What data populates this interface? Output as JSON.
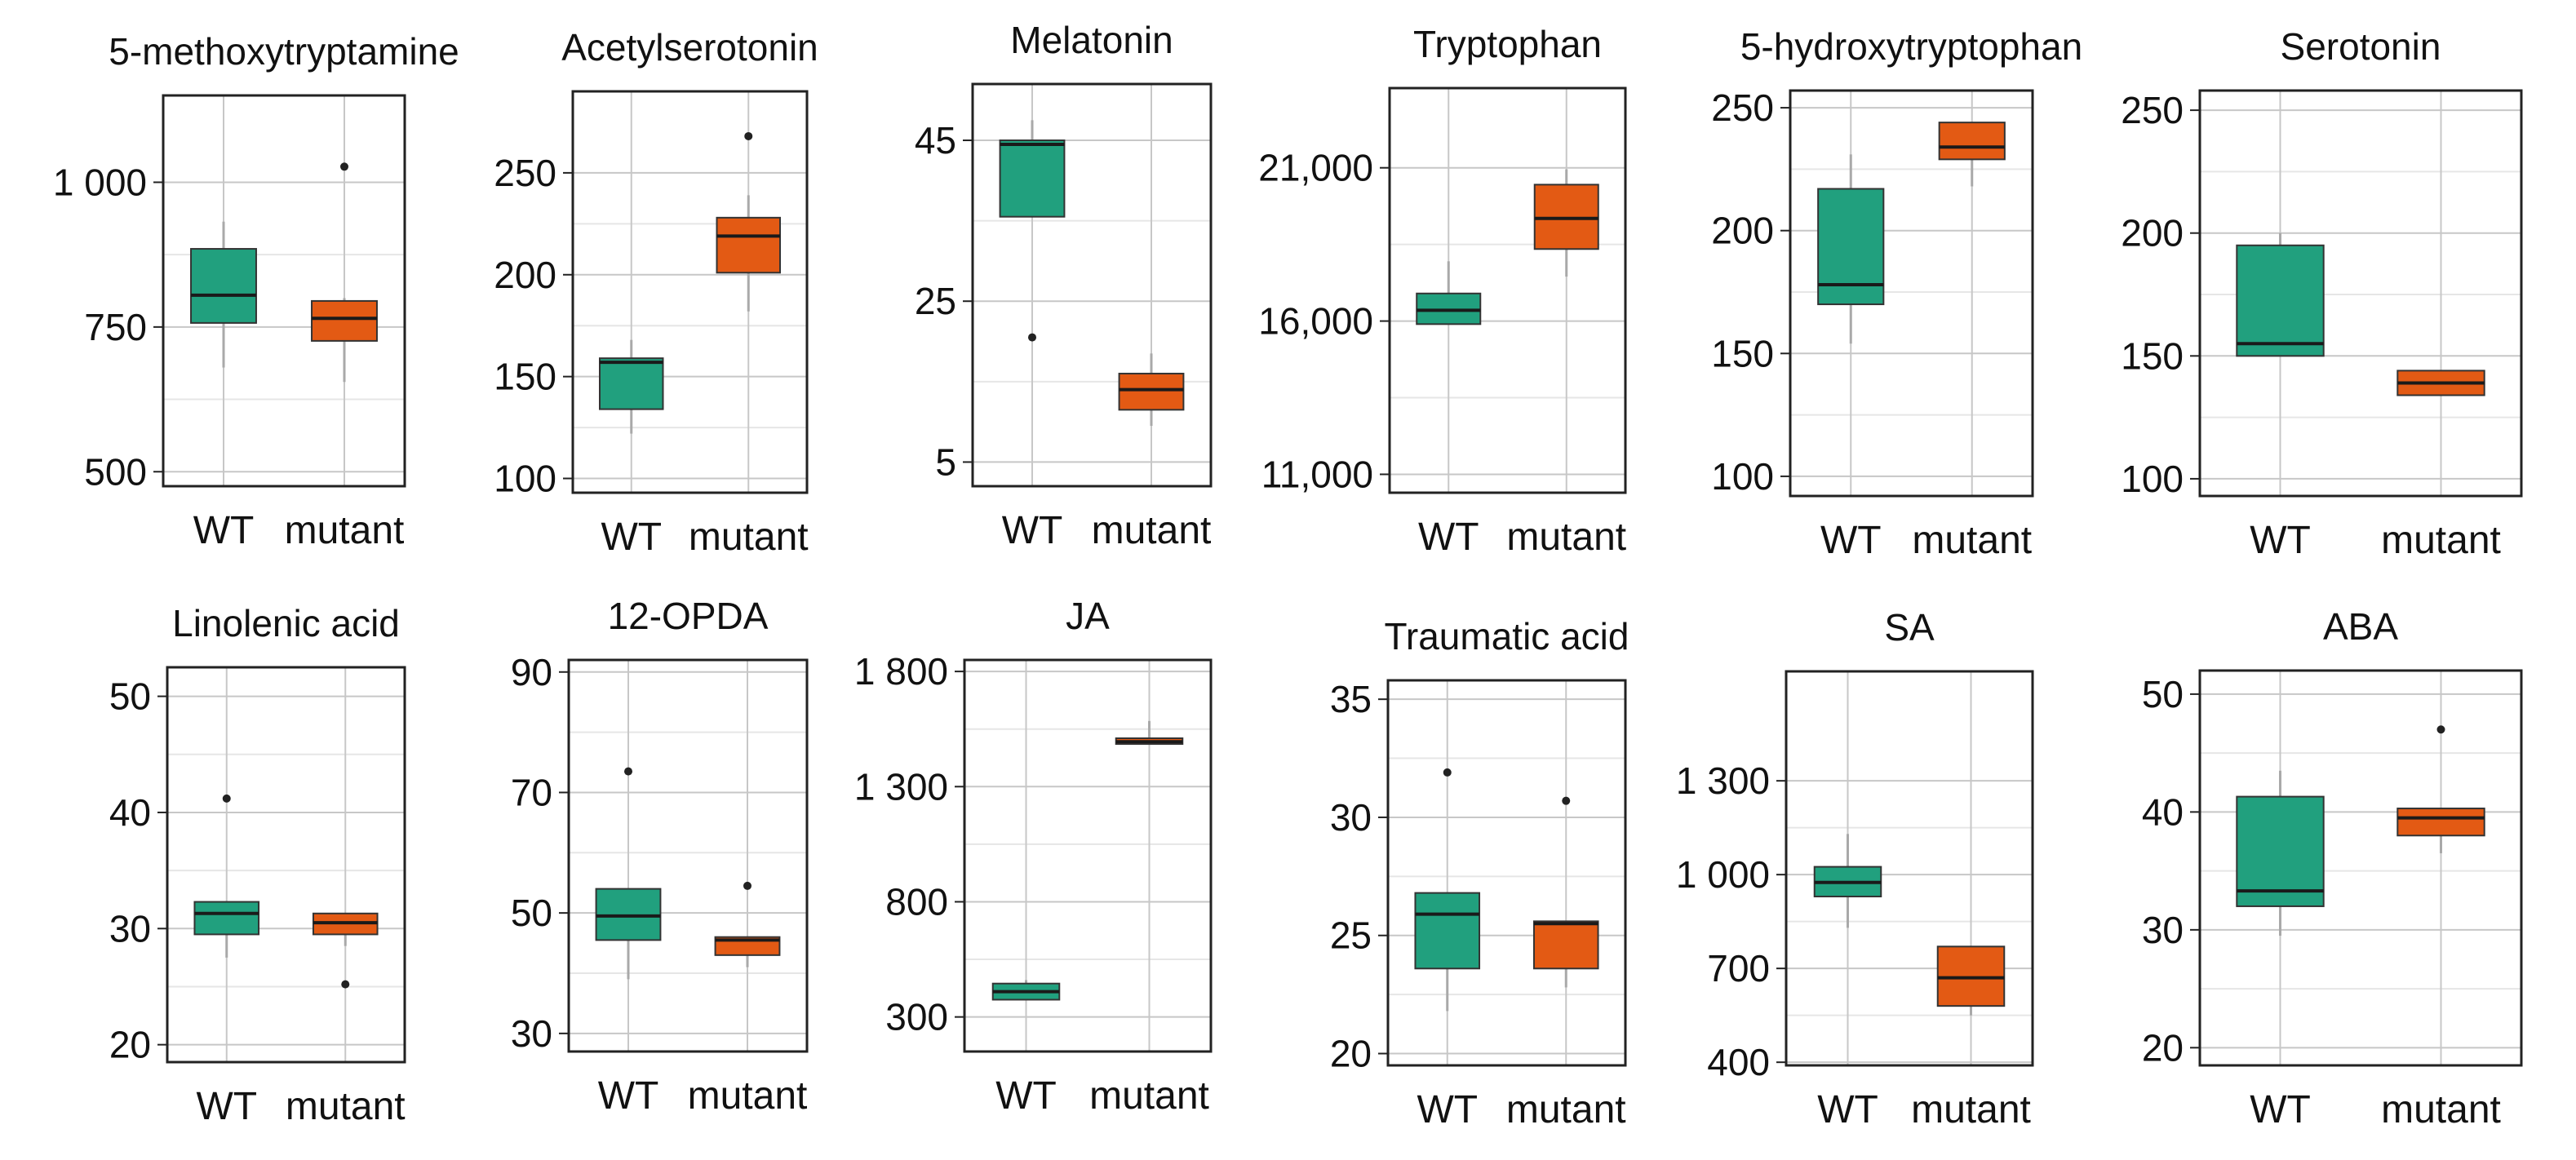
{
  "figure": {
    "rows": 2,
    "cols": 6
  },
  "colors": {
    "WT": "#21a07e",
    "mutant": "#e35a14",
    "frame": "#222222",
    "grid_major": "#c7c7c7",
    "grid_minor": "#e6e6e6",
    "median": "#1a1a1a",
    "whisker": "#a9a9a9"
  },
  "chart_data": [
    {
      "type": "box",
      "title": "5-methoxytryptamine",
      "categories": [
        "WT",
        "mutant"
      ],
      "ylim": [
        475,
        1150
      ],
      "yticks": [
        500,
        750,
        1000
      ],
      "ytick_labels": [
        "500",
        "750",
        "1 000"
      ],
      "series": [
        {
          "name": "WT",
          "min": 680,
          "q1": 757,
          "median": 805,
          "q3": 885,
          "max": 932,
          "outliers": []
        },
        {
          "name": "mutant",
          "min": 655,
          "q1": 726,
          "median": 765,
          "q3": 795,
          "max": 800,
          "outliers": [
            1027
          ]
        }
      ]
    },
    {
      "type": "box",
      "title": "Acetylserotonin",
      "categories": [
        "WT",
        "mutant"
      ],
      "ylim": [
        93,
        290
      ],
      "yticks": [
        100,
        150,
        200,
        250
      ],
      "ytick_labels": [
        "100",
        "150",
        "200",
        "250"
      ],
      "series": [
        {
          "name": "WT",
          "min": 122,
          "q1": 134,
          "median": 157,
          "q3": 159,
          "max": 168,
          "outliers": []
        },
        {
          "name": "mutant",
          "min": 182,
          "q1": 201,
          "median": 219,
          "q3": 228,
          "max": 239,
          "outliers": [
            268
          ]
        }
      ]
    },
    {
      "type": "box",
      "title": "Melatonin",
      "categories": [
        "WT",
        "mutant"
      ],
      "ylim": [
        2,
        52
      ],
      "yticks": [
        5,
        25,
        45
      ],
      "ytick_labels": [
        "5",
        "25",
        "45"
      ],
      "series": [
        {
          "name": "WT",
          "min": 35.5,
          "q1": 35.5,
          "median": 44.5,
          "q3": 45,
          "max": 47.5,
          "outliers": [
            20.5
          ]
        },
        {
          "name": "mutant",
          "min": 9.5,
          "q1": 11.5,
          "median": 14,
          "q3": 16,
          "max": 18.5,
          "outliers": []
        }
      ]
    },
    {
      "type": "box",
      "title": "Tryptophan",
      "categories": [
        "WT",
        "mutant"
      ],
      "ylim": [
        10400,
        23600
      ],
      "yticks": [
        11000,
        16000,
        21000
      ],
      "ytick_labels": [
        "11,000",
        "16,000",
        "21,000"
      ],
      "series": [
        {
          "name": "WT",
          "min": 15900,
          "q1": 15900,
          "median": 16350,
          "q3": 16900,
          "max": 17950,
          "outliers": []
        },
        {
          "name": "mutant",
          "min": 17450,
          "q1": 18350,
          "median": 19350,
          "q3": 20450,
          "max": 20950,
          "outliers": []
        }
      ]
    },
    {
      "type": "box",
      "title": "5-hydroxytryptophan",
      "categories": [
        "WT",
        "mutant"
      ],
      "ylim": [
        92,
        257
      ],
      "yticks": [
        100,
        150,
        200,
        250
      ],
      "ytick_labels": [
        "100",
        "150",
        "200",
        "250"
      ],
      "series": [
        {
          "name": "WT",
          "min": 154,
          "q1": 170,
          "median": 178,
          "q3": 217,
          "max": 231,
          "outliers": []
        },
        {
          "name": "mutant",
          "min": 218,
          "q1": 229,
          "median": 234,
          "q3": 244,
          "max": 244,
          "outliers": []
        }
      ]
    },
    {
      "type": "box",
      "title": "Serotonin",
      "categories": [
        "WT",
        "mutant"
      ],
      "ylim": [
        93,
        258
      ],
      "yticks": [
        100,
        150,
        200,
        250
      ],
      "ytick_labels": [
        "100",
        "150",
        "200",
        "250"
      ],
      "series": [
        {
          "name": "WT",
          "min": 150,
          "q1": 150,
          "median": 155,
          "q3": 195,
          "max": 200,
          "outliers": []
        },
        {
          "name": "mutant",
          "min": 134,
          "q1": 134,
          "median": 139,
          "q3": 144,
          "max": 144,
          "outliers": []
        }
      ]
    },
    {
      "type": "box",
      "title": "Linolenic acid",
      "categories": [
        "WT",
        "mutant"
      ],
      "ylim": [
        18.5,
        52.5
      ],
      "yticks": [
        20,
        30,
        40,
        50
      ],
      "ytick_labels": [
        "20",
        "30",
        "40",
        "50"
      ],
      "series": [
        {
          "name": "WT",
          "min": 27.5,
          "q1": 29.5,
          "median": 31.3,
          "q3": 32.3,
          "max": 32.3,
          "outliers": [
            41.2
          ]
        },
        {
          "name": "mutant",
          "min": 28.5,
          "q1": 29.5,
          "median": 30.5,
          "q3": 31.3,
          "max": 31.3,
          "outliers": [
            25.2
          ]
        }
      ]
    },
    {
      "type": "box",
      "title": "12-OPDA",
      "categories": [
        "WT",
        "mutant"
      ],
      "ylim": [
        27,
        92
      ],
      "yticks": [
        30,
        50,
        70,
        90
      ],
      "ytick_labels": [
        "30",
        "50",
        "70",
        "90"
      ],
      "series": [
        {
          "name": "WT",
          "min": 39,
          "q1": 45.5,
          "median": 49.5,
          "q3": 54,
          "max": 54,
          "outliers": [
            73.5
          ]
        },
        {
          "name": "mutant",
          "min": 41,
          "q1": 43,
          "median": 45.5,
          "q3": 46,
          "max": 46,
          "outliers": [
            54.5
          ]
        }
      ]
    },
    {
      "type": "box",
      "title": "JA",
      "categories": [
        "WT",
        "mutant"
      ],
      "ylim": [
        150,
        1850
      ],
      "yticks": [
        300,
        800,
        1300,
        1800
      ],
      "ytick_labels": [
        "300",
        "800",
        "1 300",
        "1 800"
      ],
      "series": [
        {
          "name": "WT",
          "min": 375,
          "q1": 375,
          "median": 410,
          "q3": 445,
          "max": 460,
          "outliers": []
        },
        {
          "name": "mutant",
          "min": 1485,
          "q1": 1485,
          "median": 1495,
          "q3": 1510,
          "max": 1585,
          "outliers": []
        }
      ]
    },
    {
      "type": "box",
      "title": "Traumatic acid",
      "categories": [
        "WT",
        "mutant"
      ],
      "ylim": [
        19.5,
        35.8
      ],
      "yticks": [
        20,
        25,
        30,
        35
      ],
      "ytick_labels": [
        "20",
        "25",
        "30",
        "35"
      ],
      "series": [
        {
          "name": "WT",
          "min": 21.8,
          "q1": 23.6,
          "median": 25.9,
          "q3": 26.8,
          "max": 26.8,
          "outliers": [
            31.9
          ]
        },
        {
          "name": "mutant",
          "min": 22.8,
          "q1": 23.6,
          "median": 25.5,
          "q3": 25.6,
          "max": 25.6,
          "outliers": [
            30.7
          ]
        }
      ]
    },
    {
      "type": "box",
      "title": "SA",
      "categories": [
        "WT",
        "mutant"
      ],
      "ylim": [
        390,
        1650
      ],
      "yticks": [
        400,
        700,
        1000,
        1300
      ],
      "ytick_labels": [
        "400",
        "700",
        "1 000",
        "1 300"
      ],
      "series": [
        {
          "name": "WT",
          "min": 830,
          "q1": 930,
          "median": 975,
          "q3": 1025,
          "max": 1130,
          "outliers": []
        },
        {
          "name": "mutant",
          "min": 550,
          "q1": 580,
          "median": 670,
          "q3": 770,
          "max": 770,
          "outliers": []
        }
      ]
    },
    {
      "type": "box",
      "title": "ABA",
      "categories": [
        "WT",
        "mutant"
      ],
      "ylim": [
        18.5,
        52
      ],
      "yticks": [
        20,
        30,
        40,
        50
      ],
      "ytick_labels": [
        "20",
        "30",
        "40",
        "50"
      ],
      "series": [
        {
          "name": "WT",
          "min": 29.5,
          "q1": 32,
          "median": 33.3,
          "q3": 41.3,
          "max": 43.5,
          "outliers": []
        },
        {
          "name": "mutant",
          "min": 36.5,
          "q1": 38,
          "median": 39.5,
          "q3": 40.3,
          "max": 40.3,
          "outliers": [
            47
          ]
        }
      ]
    }
  ]
}
